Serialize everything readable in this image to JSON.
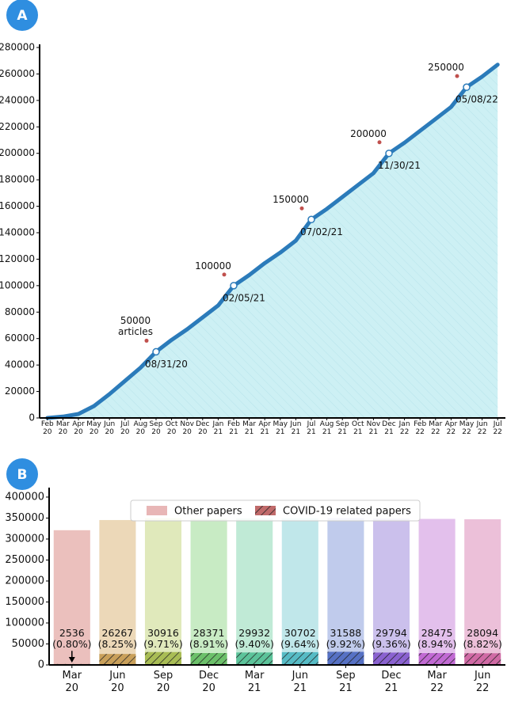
{
  "panel_labels": [
    "A",
    "B"
  ],
  "chart_data": [
    {
      "type": "line",
      "categories": [
        "Feb 20",
        "Mar 20",
        "Apr 20",
        "May 20",
        "Jun 20",
        "Jul 20",
        "Aug 20",
        "Sep 20",
        "Oct 20",
        "Nov 20",
        "Dec 20",
        "Jan 21",
        "Feb 21",
        "Mar 21",
        "Apr 21",
        "May 21",
        "Jun 21",
        "Jul 21",
        "Aug 21",
        "Sep 21",
        "Oct 21",
        "Nov 21",
        "Dec 21",
        "Jan 22",
        "Feb 22",
        "Mar 22",
        "Apr 22",
        "May 22",
        "Jun 22",
        "Jul 22"
      ],
      "values": [
        0,
        1000,
        3000,
        9000,
        18000,
        28000,
        38000,
        50000,
        59000,
        67000,
        76000,
        85000,
        100000,
        108000,
        117000,
        125000,
        134000,
        150000,
        158000,
        167000,
        176000,
        185000,
        200000,
        208000,
        217000,
        226000,
        235000,
        250000,
        258000,
        267000
      ],
      "color": "#2b7bba",
      "fill": "#cdf0f4",
      "ylim": [
        0,
        280000
      ],
      "yticks": [
        0,
        20000,
        40000,
        60000,
        80000,
        100000,
        120000,
        140000,
        160000,
        180000,
        200000,
        220000,
        240000,
        260000,
        280000
      ],
      "milestone_color": "#c0504d",
      "milestones": [
        {
          "value": 50000,
          "label": "50000 articles",
          "date": "08/31/20"
        },
        {
          "value": 100000,
          "date": "02/05/21"
        },
        {
          "value": 150000,
          "date": "07/02/21"
        },
        {
          "value": 200000,
          "date": "11/30/21"
        },
        {
          "value": 250000,
          "date": "05/08/22"
        }
      ]
    },
    {
      "type": "bar",
      "stacked": true,
      "categories": [
        "Mar 20",
        "Jun 20",
        "Sep 20",
        "Dec 20",
        "Mar 21",
        "Jun 21",
        "Sep 21",
        "Dec 21",
        "Mar 22",
        "Jun 22"
      ],
      "series": [
        {
          "name": "Other papers",
          "color": "#e8b6b6",
          "colors": [
            "#ebc0bd",
            "#ecd8b8",
            "#e0e9bb",
            "#c8ebc4",
            "#c0ead6",
            "#c0e7ea",
            "#c0cbec",
            "#cbc0ec",
            "#e3c0ec",
            "#ecc0d9"
          ],
          "values": [
            318500,
            319000,
            319000,
            320000,
            319000,
            319000,
            318500,
            319000,
            319500,
            319000
          ]
        },
        {
          "name": "COVID-19 related papers",
          "color": "#c06a6a",
          "hatch": true,
          "colors": [
            "#c77a72",
            "#c9a05a",
            "#a9bd55",
            "#6cc06a",
            "#5cc39a",
            "#56bbc5",
            "#5671c4",
            "#8a62d0",
            "#c16ad3",
            "#d06aa5"
          ],
          "values": [
            2536,
            26267,
            30916,
            28371,
            29932,
            30702,
            31588,
            29794,
            28475,
            28094
          ],
          "value_labels": [
            "2536 (0.80%)",
            "26267 (8.25%)",
            "30916 (9.71%)",
            "28371 (8.91%)",
            "29932 (9.40%)",
            "30702 (9.64%)",
            "31588 (9.92%)",
            "29794 (9.36%)",
            "28475 (8.94%)",
            "28094 (8.82%)"
          ]
        }
      ],
      "ylim": [
        0,
        415000
      ],
      "yticks": [
        0,
        50000,
        100000,
        150000,
        200000,
        250000,
        300000,
        350000,
        400000
      ],
      "legend": "top"
    }
  ]
}
